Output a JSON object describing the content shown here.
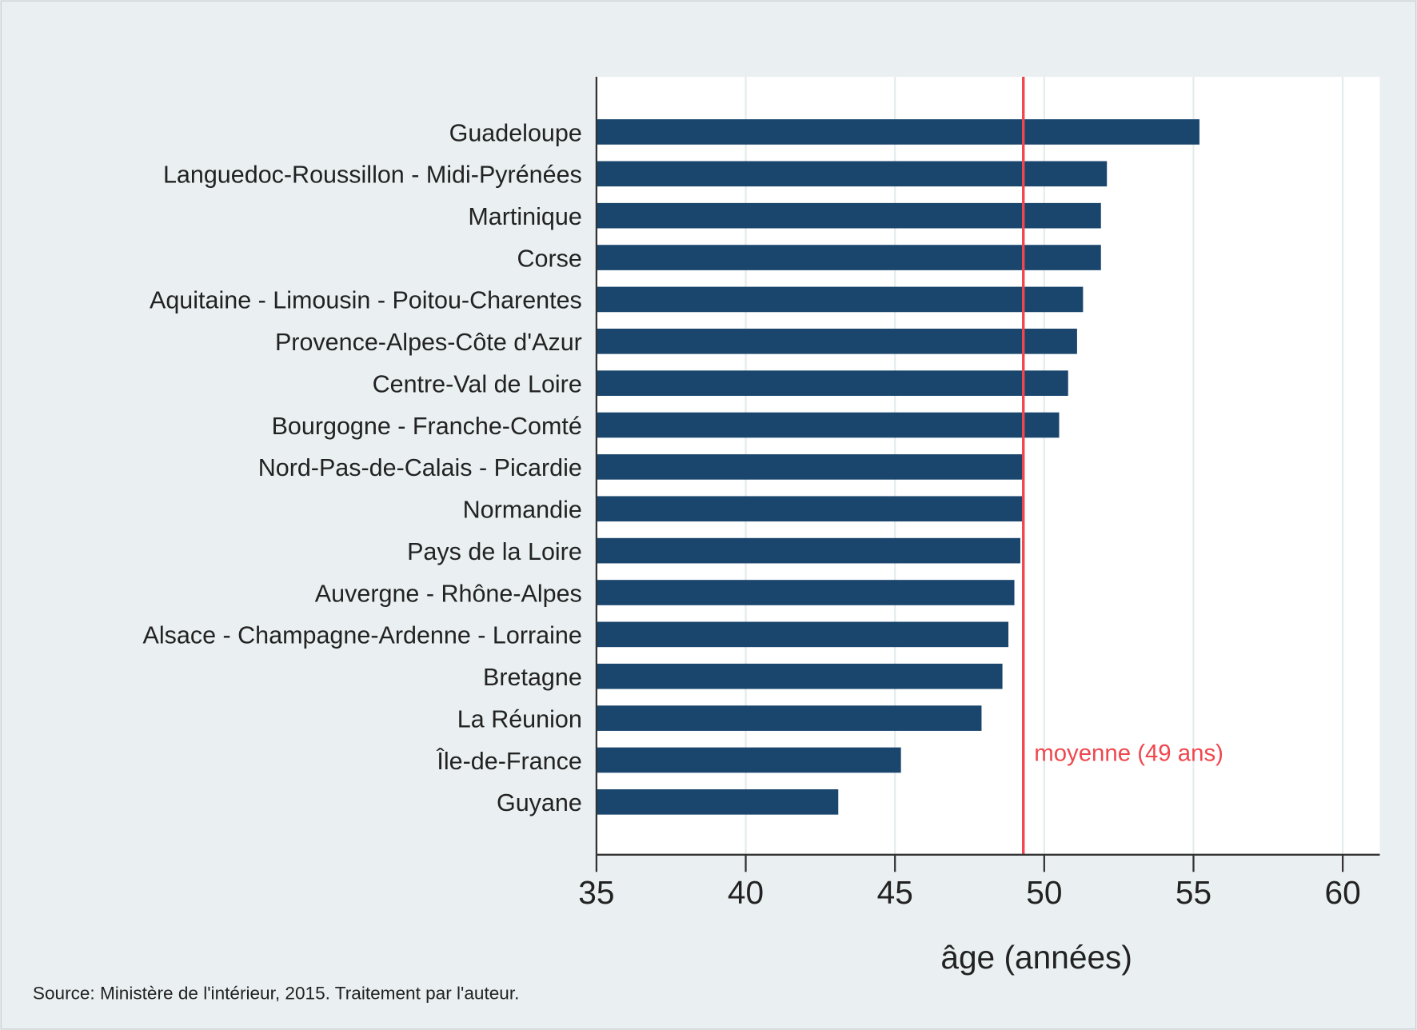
{
  "chart_data": {
    "type": "bar",
    "orientation": "horizontal",
    "categories": [
      "Guadeloupe",
      "Languedoc-Roussillon - Midi-Pyrénées",
      "Martinique",
      "Corse",
      "Aquitaine - Limousin - Poitou-Charentes",
      "Provence-Alpes-Côte d'Azur",
      "Centre-Val de Loire",
      "Bourgogne - Franche-Comté",
      "Nord-Pas-de-Calais - Picardie",
      "Normandie",
      "Pays de la Loire",
      "Auvergne - Rhône-Alpes",
      "Alsace - Champagne-Ardenne - Lorraine",
      "Bretagne",
      "La Réunion",
      "Île-de-France",
      "Guyane"
    ],
    "values": [
      55.2,
      52.1,
      51.9,
      51.9,
      51.3,
      51.1,
      50.8,
      50.5,
      49.3,
      49.3,
      49.2,
      49.0,
      48.8,
      48.6,
      47.9,
      45.2,
      43.1
    ],
    "xlabel": "âge (années)",
    "xlim": [
      35,
      61.2
    ],
    "xticks": [
      35,
      40,
      45,
      50,
      55,
      60
    ],
    "grid": true,
    "bar_color": "#1a466d",
    "reference_line": {
      "value": 49.3,
      "label": "moyenne (49 ans)",
      "color": "#f0474f"
    },
    "source": "Source: Ministère de l'intérieur, 2015. Traitement par l'auteur."
  }
}
